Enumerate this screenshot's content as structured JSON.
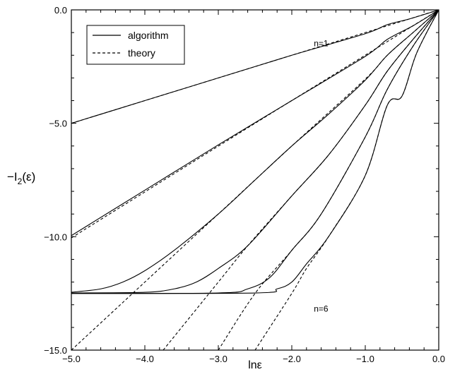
{
  "chart_data": {
    "type": "line",
    "xlabel": "lnε",
    "ylabel_main": "−I",
    "ylabel_sub": "2",
    "ylabel_tail": "(ε)",
    "xlim": [
      -5.0,
      0.0
    ],
    "ylim": [
      -15.0,
      0.0
    ],
    "xticks": [
      -5.0,
      -4.0,
      -3.0,
      -2.0,
      -1.0,
      0.0
    ],
    "xtick_labels": [
      "−5.0",
      "−4.0",
      "−3.0",
      "−2.0",
      "−1.0",
      "0.0"
    ],
    "yticks": [
      0.0,
      -5.0,
      -10.0,
      -15.0
    ],
    "ytick_labels": [
      "0.0",
      "−5.0",
      "−10.0",
      "−15.0"
    ],
    "legend": {
      "placement": "top-left",
      "entries": [
        {
          "label": "algorithm",
          "style": "solid"
        },
        {
          "label": "theory",
          "style": "dashed"
        }
      ]
    },
    "annotations": [
      {
        "text": "n=1",
        "x": -1.7,
        "y": -1.6
      },
      {
        "text": "n=6",
        "x": -1.7,
        "y": -13.3
      }
    ],
    "series": [
      {
        "style": "solid",
        "points": [
          [
            -5.0,
            -5.0
          ],
          [
            -4.0,
            -4.0
          ],
          [
            -3.0,
            -3.0
          ],
          [
            -2.0,
            -2.0
          ],
          [
            -1.0,
            -1.05
          ],
          [
            -0.7,
            -0.65
          ],
          [
            -0.4,
            -0.4
          ],
          [
            0.0,
            0.0
          ]
        ]
      },
      {
        "style": "solid",
        "points": [
          [
            -5.0,
            -9.95
          ],
          [
            -4.0,
            -7.95
          ],
          [
            -3.0,
            -5.95
          ],
          [
            -2.0,
            -4.0
          ],
          [
            -1.0,
            -2.05
          ],
          [
            -0.7,
            -1.3
          ],
          [
            -0.35,
            -0.7
          ],
          [
            0.0,
            0.0
          ]
        ]
      },
      {
        "style": "solid",
        "points": [
          [
            -5.0,
            -12.45
          ],
          [
            -4.6,
            -12.3
          ],
          [
            -4.3,
            -12.0
          ],
          [
            -4.0,
            -11.5
          ],
          [
            -3.6,
            -10.6
          ],
          [
            -3.0,
            -9.0
          ],
          [
            -2.5,
            -7.5
          ],
          [
            -2.0,
            -6.0
          ],
          [
            -1.5,
            -4.6
          ],
          [
            -1.0,
            -3.1
          ],
          [
            -0.7,
            -2.0
          ],
          [
            -0.35,
            -1.0
          ],
          [
            0.0,
            0.0
          ]
        ]
      },
      {
        "style": "solid",
        "points": [
          [
            -5.0,
            -12.48
          ],
          [
            -4.0,
            -12.45
          ],
          [
            -3.6,
            -12.3
          ],
          [
            -3.3,
            -12.0
          ],
          [
            -3.0,
            -11.4
          ],
          [
            -2.6,
            -10.4
          ],
          [
            -2.0,
            -8.2
          ],
          [
            -1.5,
            -6.4
          ],
          [
            -1.0,
            -4.2
          ],
          [
            -0.7,
            -2.7
          ],
          [
            -0.35,
            -1.3
          ],
          [
            0.0,
            0.0
          ]
        ]
      },
      {
        "style": "solid",
        "points": [
          [
            -5.0,
            -12.5
          ],
          [
            -3.0,
            -12.48
          ],
          [
            -2.6,
            -12.3
          ],
          [
            -2.3,
            -11.8
          ],
          [
            -2.0,
            -10.6
          ],
          [
            -1.6,
            -9.0
          ],
          [
            -1.0,
            -5.6
          ],
          [
            -0.7,
            -3.5
          ],
          [
            -0.35,
            -1.6
          ],
          [
            0.0,
            0.0
          ]
        ]
      },
      {
        "style": "solid",
        "points": [
          [
            -5.0,
            -12.5
          ],
          [
            -2.5,
            -12.48
          ],
          [
            -2.2,
            -12.3
          ],
          [
            -2.0,
            -12.0
          ],
          [
            -1.8,
            -11.2
          ],
          [
            -1.5,
            -10.0
          ],
          [
            -1.0,
            -7.3
          ],
          [
            -0.7,
            -4.2
          ],
          [
            -0.5,
            -3.8
          ],
          [
            -0.3,
            -1.9
          ],
          [
            0.0,
            0.0
          ]
        ]
      },
      {
        "style": "dashed",
        "points": [
          [
            -5.0,
            -5.0
          ],
          [
            0.0,
            0.0
          ]
        ]
      },
      {
        "style": "dashed",
        "points": [
          [
            -5.0,
            -10.05
          ],
          [
            -2.5,
            -5.0
          ],
          [
            0.0,
            0.0
          ]
        ]
      },
      {
        "style": "dashed",
        "points": [
          [
            -5.0,
            -15.0
          ],
          [
            -4.0,
            -12.0
          ],
          [
            -3.0,
            -9.0
          ],
          [
            -2.0,
            -6.0
          ],
          [
            -1.0,
            -3.05
          ],
          [
            -0.7,
            -2.0
          ],
          [
            -0.35,
            -1.0
          ],
          [
            0.0,
            0.0
          ]
        ]
      },
      {
        "style": "dashed",
        "points": [
          [
            -3.75,
            -15.0
          ],
          [
            -3.0,
            -12.0
          ],
          [
            -2.6,
            -10.4
          ],
          [
            -2.0,
            -8.2
          ],
          [
            -1.5,
            -6.4
          ],
          [
            -1.0,
            -4.2
          ],
          [
            -0.7,
            -2.7
          ],
          [
            -0.35,
            -1.3
          ],
          [
            0.0,
            0.0
          ]
        ]
      },
      {
        "style": "dashed",
        "points": [
          [
            -3.0,
            -15.0
          ],
          [
            -2.5,
            -12.5
          ],
          [
            -2.0,
            -10.6
          ],
          [
            -1.6,
            -9.0
          ],
          [
            -1.0,
            -5.6
          ],
          [
            -0.7,
            -3.5
          ],
          [
            -0.35,
            -1.6
          ],
          [
            0.0,
            0.0
          ]
        ]
      },
      {
        "style": "dashed",
        "points": [
          [
            -2.5,
            -15.0
          ],
          [
            -2.0,
            -12.5
          ],
          [
            -1.8,
            -11.4
          ],
          [
            -1.5,
            -10.0
          ],
          [
            -1.0,
            -7.3
          ],
          [
            -0.7,
            -4.2
          ],
          [
            -0.5,
            -3.8
          ],
          [
            -0.3,
            -1.9
          ],
          [
            0.0,
            0.0
          ]
        ]
      }
    ]
  }
}
